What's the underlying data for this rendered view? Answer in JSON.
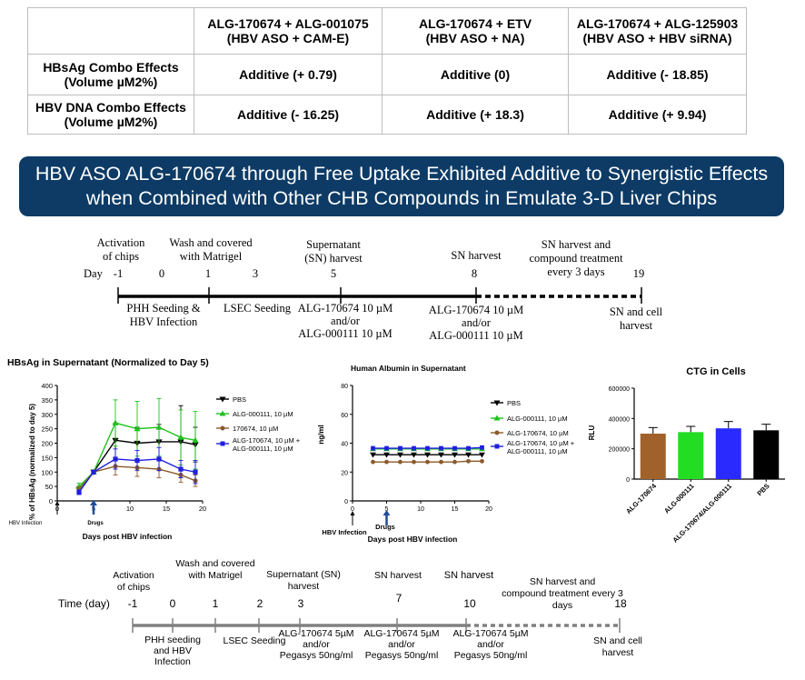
{
  "table": {
    "headers": [
      "",
      [
        "ALG-170674 + ALG-001075",
        "(HBV ASO + CAM-E)"
      ],
      [
        "ALG-170674 + ETV",
        "(HBV ASO + NA)"
      ],
      [
        "ALG-170674 + ALG-125903",
        "(HBV ASO + HBV siRNA)"
      ]
    ],
    "rows": [
      {
        "label": [
          "HBsAg Combo Effects",
          "(Volume µM2%)"
        ],
        "cells": [
          "Additive (+ 0.79)",
          "Additive (0)",
          "Additive (- 18.85)"
        ]
      },
      {
        "label": [
          "HBV DNA Combo Effects",
          "(Volume µM2%)"
        ],
        "cells": [
          "Additive (- 16.25)",
          "Additive (+ 18.3)",
          "Additive (+ 9.94)"
        ]
      }
    ]
  },
  "banner": {
    "line1": "HBV ASO ALG-170674 through Free Uptake Exhibited Additive to Synergistic Effects",
    "line2": "when Combined with Other CHB Compounds in Emulate 3-D Liver Chips"
  },
  "timeline1": {
    "day_label": "Day",
    "ticks": [
      "-1",
      "0",
      "1",
      "3",
      "5",
      "8",
      "19"
    ],
    "above": {
      "activation": [
        "Activation",
        "of chips"
      ],
      "wash": [
        "Wash and covered",
        "with Matrigel"
      ],
      "supernatant": [
        "Supernatant",
        "(SN) harvest"
      ],
      "sn_harvest": "SN harvest",
      "sn_compound": [
        "SN harvest and",
        "compound treatment",
        "every 3 days"
      ]
    },
    "below": {
      "phh": [
        "PHH Seeding &",
        "HBV Infection"
      ],
      "lsec": "LSEC Seeding",
      "trt_a": [
        "ALG-170674 10 µM",
        "and/or",
        "ALG-000111 10 µM"
      ],
      "trt_b": [
        "ALG-170674 10 µM",
        "and/or",
        "ALG-000111 10 µM"
      ],
      "final": [
        "SN and cell",
        "harvest"
      ]
    }
  },
  "timeline2": {
    "day_label": "Time (day)",
    "ticks": [
      "-1",
      "0",
      "1",
      "2",
      "3",
      "7",
      "10",
      "18"
    ],
    "above": {
      "activation": [
        "Activation",
        "of chips"
      ],
      "wash": [
        "Wash and covered",
        "with Matrigel"
      ],
      "supernatant": [
        "Supernatant (SN)",
        "harvest"
      ],
      "sn_harvest_7": "SN harvest",
      "sn_harvest_10": "SN harvest",
      "sn_compound": [
        "SN harvest and",
        "compound treatment every 3",
        "days"
      ]
    },
    "below": {
      "phh": [
        "PHH seeding",
        "and HBV",
        "Infection"
      ],
      "lsec": "LSEC Seeding",
      "trt_a": [
        "ALG-170674 5µM",
        "and/or",
        "Pegasys 50ng/ml"
      ],
      "trt_b": [
        "ALG-170674 5µM",
        "and/or",
        "Pegasys 50ng/ml"
      ],
      "trt_c": [
        "ALG-170674 5µM",
        "and/or",
        "Pegasys 50ng/ml"
      ],
      "final": [
        "SN and cell",
        "harvest"
      ]
    }
  },
  "chart_data": [
    {
      "type": "line",
      "title": "HBsAg in Supernatant (Normalized to Day 5)",
      "xlabel": "Days post HBV infection",
      "ylabel": "% of HBsAg (normalized to day 5)",
      "xlim": [
        0,
        20
      ],
      "ylim": [
        0,
        400
      ],
      "xticks": [
        0,
        5,
        10,
        15,
        20
      ],
      "yticks": [
        0,
        50,
        100,
        150,
        200,
        250,
        300,
        350,
        400
      ],
      "annotations": {
        "hbv_infection": "HBV Infection",
        "drugs": "Drugs"
      },
      "legend": "right",
      "x": [
        3,
        5,
        8,
        11,
        14,
        17,
        19
      ],
      "series": [
        {
          "name": "PBS",
          "color": "#000000",
          "marker": "triangle-down",
          "values": [
            40,
            100,
            210,
            200,
            205,
            205,
            195
          ],
          "errors": [
            10,
            5,
            60,
            55,
            60,
            125,
            60
          ]
        },
        {
          "name": "ALG-000111, 10 µM",
          "color": "#1fc21f",
          "marker": "triangle-up",
          "values": [
            50,
            100,
            270,
            250,
            255,
            220,
            210
          ],
          "errors": [
            12,
            5,
            80,
            95,
            100,
            95,
            100
          ]
        },
        {
          "name": "170674, 10 µM",
          "color": "#8b5a2b",
          "marker": "circle",
          "values": [
            40,
            100,
            120,
            115,
            110,
            90,
            70
          ],
          "errors": [
            8,
            5,
            30,
            30,
            30,
            25,
            20
          ]
        },
        {
          "name": "ALG-170674, 10 µM + ALG-000111, 10 µM",
          "color": "#1f1fe0",
          "marker": "square",
          "values": [
            30,
            100,
            145,
            140,
            145,
            110,
            100
          ],
          "errors": [
            8,
            5,
            35,
            35,
            40,
            30,
            40
          ]
        }
      ]
    },
    {
      "type": "line",
      "title": "Human Albumin in Supernatant",
      "xlabel": "Days post HBV infection",
      "ylabel": "ng/ml",
      "xlim": [
        0,
        20
      ],
      "ylim": [
        0,
        80
      ],
      "xticks": [
        0,
        5,
        10,
        15,
        20
      ],
      "yticks": [
        0,
        20,
        40,
        60,
        80
      ],
      "annotations": {
        "hbv_infection": "HBV Infection",
        "drugs": "Drugs"
      },
      "legend": "right",
      "x": [
        3,
        5,
        7,
        9,
        11,
        13,
        15,
        17,
        19
      ],
      "series": [
        {
          "name": "PBS",
          "color": "#000000",
          "marker": "triangle-down",
          "values": [
            32,
            32,
            32,
            32,
            32,
            32,
            32,
            32,
            32
          ]
        },
        {
          "name": "ALG-000111, 10 µM",
          "color": "#1fc21f",
          "marker": "triangle-up",
          "values": [
            36,
            36,
            36,
            36,
            36,
            36,
            36,
            36,
            36
          ]
        },
        {
          "name": "ALG-170674, 10 µM",
          "color": "#8b5a2b",
          "marker": "circle",
          "values": [
            27,
            27,
            27,
            27,
            27,
            27,
            27,
            27.5,
            27.5
          ]
        },
        {
          "name": "ALG-170674, 10 µM + ALG-000111, 10 µM",
          "color": "#1f1fe0",
          "marker": "square",
          "values": [
            36.5,
            36.5,
            36.5,
            36.5,
            36.5,
            36.5,
            36.5,
            36.5,
            37
          ]
        }
      ]
    },
    {
      "type": "bar",
      "title": "CTG in Cells",
      "xlabel": "",
      "ylabel": "RLU",
      "ylim": [
        0,
        600000
      ],
      "yticks": [
        0,
        200000,
        400000,
        600000
      ],
      "ytick_labels": [
        "0",
        "200000",
        "400000",
        "600000"
      ],
      "categories": [
        "ALG-170674",
        "ALG-000111",
        "ALG-170674/ALG-000111",
        "PBS"
      ],
      "values": [
        300000,
        310000,
        335000,
        322000
      ],
      "errors": [
        40000,
        38000,
        45000,
        40000
      ],
      "colors": [
        "#a0622a",
        "#22dd22",
        "#2a2aff",
        "#000000"
      ]
    }
  ]
}
